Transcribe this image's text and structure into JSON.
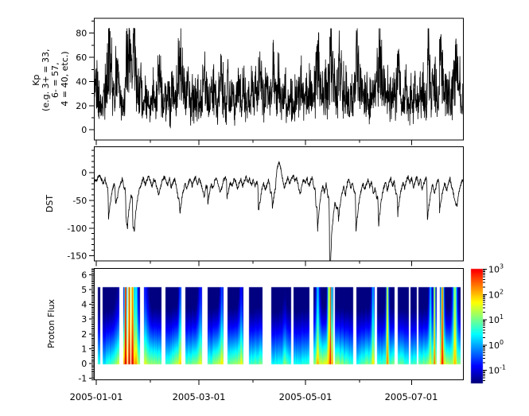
{
  "figure": {
    "background": "#ffffff",
    "axis_color": "#000000",
    "series_color": "#000000"
  },
  "x_axis": {
    "major_ticks": [
      {
        "day": 0,
        "label": "2005-01-01"
      },
      {
        "day": 59,
        "label": "2005-03-01"
      },
      {
        "day": 120,
        "label": "2005-05-01"
      },
      {
        "day": 181,
        "label": "2005-07-01"
      }
    ],
    "minor_tick_days": [
      31,
      90,
      151
    ],
    "day_range": [
      -1.2,
      210.8
    ]
  },
  "chart_data": [
    {
      "type": "line",
      "name": "kp-index",
      "ylabel_lines": [
        "Kp",
        "(e.g. 3+ = 33,",
        "6- = 57,",
        "4 = 40, etc.)"
      ],
      "yticks": [
        0,
        20,
        40,
        60,
        80
      ],
      "minor_ytick_step": 10,
      "ylim": [
        -8.4,
        92.3
      ],
      "x_unit": "days since 2005-01-01",
      "samples_per_day": 8,
      "noise_seed": 20050101,
      "daily_values": [
        42,
        34,
        26,
        22,
        30,
        38,
        62,
        76,
        58,
        38,
        33,
        52,
        57,
        41,
        29,
        26,
        36,
        72,
        83,
        62,
        55,
        79,
        71,
        48,
        37,
        44,
        29,
        24,
        34,
        27,
        21,
        31,
        38,
        26,
        33,
        47,
        52,
        35,
        24,
        31,
        27,
        36,
        23,
        42,
        35,
        28,
        39,
        55,
        66,
        48,
        36,
        29,
        41,
        33,
        26,
        37,
        30,
        23,
        35,
        28,
        33,
        44,
        56,
        38,
        30,
        26,
        35,
        42,
        30,
        24,
        37,
        50,
        44,
        31,
        26,
        47,
        38,
        29,
        34,
        26,
        30,
        41,
        35,
        27,
        38,
        31,
        24,
        33,
        28,
        36,
        29,
        39,
        33,
        58,
        49,
        36,
        30,
        42,
        35,
        27,
        46,
        57,
        43,
        34,
        52,
        38,
        29,
        35,
        44,
        31,
        26,
        38,
        30,
        24,
        34,
        28,
        39,
        47,
        33,
        27,
        35,
        29,
        41,
        33,
        27,
        44,
        60,
        70,
        52,
        38,
        31,
        42,
        36,
        50,
        87,
        69,
        48,
        38,
        44,
        63,
        51,
        40,
        33,
        45,
        30,
        26,
        37,
        31,
        42,
        74,
        58,
        43,
        35,
        29,
        39,
        33,
        26,
        36,
        30,
        44,
        37,
        53,
        80,
        62,
        45,
        36,
        30,
        41,
        34,
        28,
        38,
        31,
        46,
        59,
        42,
        33,
        28,
        37,
        30,
        25,
        34,
        29,
        40,
        32,
        27,
        36,
        30,
        43,
        35,
        28,
        71,
        55,
        41,
        33,
        46,
        38,
        30,
        64,
        52,
        40,
        33,
        44,
        36,
        28,
        39,
        47,
        56,
        58,
        42,
        34,
        30
      ]
    },
    {
      "type": "line",
      "name": "dst-index",
      "ylabel": "DST",
      "yticks": [
        0,
        -50,
        -100,
        -150
      ],
      "minor_ytick_step": 10,
      "ylim": [
        -159.1,
        46.8
      ],
      "x_unit": "days since 2005-01-01",
      "samples_per_day": 8,
      "noise_seed": 19570333,
      "daily_values": [
        -15,
        -8,
        -5,
        -12,
        -20,
        -10,
        -25,
        -93,
        -55,
        -35,
        -22,
        -55,
        -48,
        -30,
        -18,
        -12,
        -28,
        -80,
        -103,
        -60,
        -42,
        -97,
        -105,
        -62,
        -40,
        -28,
        -18,
        -10,
        -22,
        -14,
        -8,
        -15,
        -25,
        -12,
        -18,
        -30,
        -42,
        -25,
        -12,
        -8,
        -15,
        -22,
        -10,
        -28,
        -18,
        -12,
        -25,
        -48,
        -80,
        -50,
        -32,
        -20,
        -30,
        -18,
        -10,
        -24,
        -15,
        -8,
        -20,
        -12,
        -18,
        -30,
        -45,
        -25,
        -58,
        -35,
        -22,
        -30,
        -15,
        -8,
        -20,
        -38,
        -28,
        -14,
        -10,
        -45,
        -30,
        -18,
        -24,
        -12,
        -16,
        -28,
        -20,
        -10,
        -25,
        -15,
        -8,
        -18,
        -12,
        -22,
        -14,
        -25,
        -18,
        -70,
        -52,
        -32,
        -20,
        -30,
        -22,
        -12,
        -35,
        -65,
        -42,
        -25,
        10,
        18,
        5,
        -12,
        -28,
        -16,
        -8,
        -20,
        -12,
        -5,
        -15,
        -10,
        -25,
        -40,
        -22,
        -12,
        -18,
        -10,
        -25,
        -15,
        -8,
        -30,
        -60,
        -110,
        -68,
        -40,
        -25,
        -35,
        -20,
        -45,
        -250,
        -120,
        -82,
        -55,
        -65,
        -92,
        -58,
        -38,
        -25,
        -42,
        -20,
        -12,
        -28,
        -18,
        -35,
        -113,
        -78,
        -50,
        -32,
        -20,
        -30,
        -22,
        -12,
        -26,
        -16,
        -40,
        -28,
        -45,
        -106,
        -68,
        -42,
        -28,
        -16,
        -32,
        -20,
        -10,
        -25,
        -15,
        -38,
        -82,
        -50,
        -30,
        -18,
        -28,
        -14,
        -6,
        -18,
        -10,
        -28,
        -16,
        -8,
        -22,
        -12,
        -30,
        -20,
        -10,
        -92,
        -58,
        -36,
        -22,
        -38,
        -26,
        -14,
        -74,
        -48,
        -30,
        -18,
        -32,
        -22,
        -10,
        -26,
        -38,
        -52,
        -60,
        -38,
        -22,
        -15
      ]
    },
    {
      "type": "heatmap",
      "name": "proton-flux",
      "ylabel": "Proton Flux",
      "yticks": [
        -1,
        0,
        1,
        2,
        3,
        4,
        5,
        6
      ],
      "minor_ytick_step": 0.1,
      "ylim": [
        -1.1,
        6.42
      ],
      "heat_band_y": [
        0,
        5.2
      ],
      "colormap": "jet",
      "log_flux_color_range": [
        -1.45,
        3.6
      ],
      "noise_seed": 777,
      "blocks": [
        {
          "d0": 0.8,
          "d1": 1.9,
          "vl": 0.6,
          "vr": 0.6,
          "hot": [],
          "gaps": []
        },
        {
          "d0": 3.2,
          "d1": 13.2,
          "vl": 0.3,
          "vr": 1.25,
          "hot": [
            [
              12.5,
              1.5,
              1.5,
              0.15
            ]
          ],
          "gaps": []
        },
        {
          "d0": 15.5,
          "d1": 24.7,
          "vl": 2.3,
          "vr": 1.25,
          "hot": [
            [
              16.6,
              0.6,
              3.35,
              0.97
            ],
            [
              18.7,
              0.65,
              3.3,
              0.93
            ],
            [
              20.6,
              0.9,
              3.2,
              0.85
            ],
            [
              22.5,
              1.2,
              2.3,
              0.55
            ]
          ],
          "gaps": [
            [
              17.5,
              17.9
            ],
            [
              19.4,
              19.8
            ]
          ]
        },
        {
          "d0": 27.0,
          "d1": 37.4,
          "vl": 1.25,
          "vr": 1.0,
          "hot": [
            [
              28,
              1.5,
              1.6,
              0.3
            ]
          ],
          "gaps": []
        },
        {
          "d0": 39.3,
          "d1": 48.4,
          "vl": 0.7,
          "vr": 1.5,
          "hot": [
            [
              48,
              0.8,
              2.1,
              0.35
            ]
          ],
          "gaps": []
        },
        {
          "d0": 51.1,
          "d1": 60.3,
          "vl": 0.85,
          "vr": 1.3,
          "hot": [
            [
              59.5,
              1.0,
              1.7,
              0.3
            ]
          ],
          "gaps": []
        },
        {
          "d0": 63.5,
          "d1": 72.6,
          "vl": 0.75,
          "vr": 1.5,
          "hot": [
            [
              71.8,
              0.9,
              1.9,
              0.35
            ]
          ],
          "gaps": []
        },
        {
          "d0": 74.9,
          "d1": 84.0,
          "vl": 0.95,
          "vr": 1.35,
          "hot": [
            [
              83,
              0.9,
              1.8,
              0.3
            ]
          ],
          "gaps": []
        },
        {
          "d0": 87.2,
          "d1": 95.4,
          "vl": 0.7,
          "vr": 1.05,
          "hot": [],
          "gaps": []
        },
        {
          "d0": 100.0,
          "d1": 111.4,
          "vl": 0.5,
          "vr": 0.75,
          "hot": [
            [
              108,
              1.2,
              1.2,
              0.1
            ]
          ],
          "gaps": []
        },
        {
          "d0": 112.8,
          "d1": 121.9,
          "vl": 0.5,
          "vr": 0.6,
          "hot": [],
          "gaps": []
        },
        {
          "d0": 124.2,
          "d1": 135.6,
          "vl": 1.1,
          "vr": 1.9,
          "hot": [
            [
              126.9,
              1.0,
              2.2,
              0.5
            ],
            [
              133.2,
              0.6,
              2.1,
              0.85
            ],
            [
              134.1,
              0.5,
              3.15,
              0.93
            ],
            [
              135.1,
              0.5,
              2.4,
              0.6
            ]
          ],
          "gaps": []
        },
        {
          "d0": 136.5,
          "d1": 147.0,
          "vl": 1.45,
          "vr": 0.65,
          "hot": [],
          "gaps": []
        },
        {
          "d0": 148.9,
          "d1": 159.4,
          "vl": 0.55,
          "vr": 1.25,
          "hot": [
            [
              158.6,
              0.8,
              1.9,
              0.5
            ]
          ],
          "gaps": []
        },
        {
          "d0": 160.7,
          "d1": 170.8,
          "vl": 0.7,
          "vr": 1.0,
          "hot": [
            [
              166.9,
              0.65,
              2.5,
              0.8
            ]
          ],
          "gaps": []
        },
        {
          "d0": 173.0,
          "d1": 179.0,
          "vl": 0.9,
          "vr": 0.7,
          "hot": [],
          "gaps": []
        },
        {
          "d0": 179.9,
          "d1": 183.6,
          "vl": 0.6,
          "vr": 0.9,
          "hot": [],
          "gaps": []
        },
        {
          "d0": 184.5,
          "d1": 195.0,
          "vl": 0.9,
          "vr": 1.3,
          "hot": [
            [
              191.6,
              0.7,
              1.7,
              0.55
            ],
            [
              193.9,
              0.55,
              2.6,
              0.8
            ]
          ],
          "gaps": []
        },
        {
          "d0": 196.8,
          "d1": 208.7,
          "vl": 1.5,
          "vr": 1.1,
          "hot": [
            [
              198.4,
              0.8,
              3.0,
              0.9
            ],
            [
              205.6,
              1.1,
              2.1,
              0.8
            ]
          ],
          "gaps": []
        }
      ],
      "colorbar": {
        "value_top": 3.02,
        "value_bottom": -1.51,
        "base": "10",
        "tick_exponents": [
          3,
          2,
          1,
          0,
          -1
        ]
      }
    }
  ]
}
